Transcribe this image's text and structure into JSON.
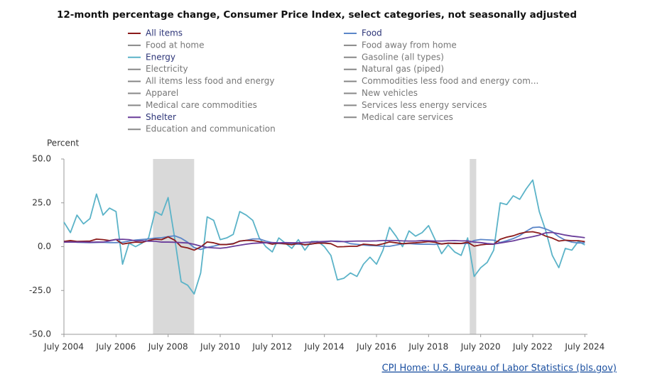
{
  "chart_data": {
    "type": "line",
    "title": "12-month percentage change, Consumer Price Index, select categories, not seasonally adjusted",
    "y_label": "Percent",
    "source_link": "CPI Home: U.S. Bureau of Labor Statistics (bls.gov)",
    "xlim": [
      2004.5,
      2024.6
    ],
    "xticks": [
      {
        "value": 2004.5,
        "label": "July 2004"
      },
      {
        "value": 2006.5,
        "label": "July 2006"
      },
      {
        "value": 2008.5,
        "label": "July 2008"
      },
      {
        "value": 2010.5,
        "label": "July 2010"
      },
      {
        "value": 2012.5,
        "label": "July 2012"
      },
      {
        "value": 2014.5,
        "label": "July 2014"
      },
      {
        "value": 2016.5,
        "label": "July 2016"
      },
      {
        "value": 2018.5,
        "label": "July 2018"
      },
      {
        "value": 2020.5,
        "label": "July 2020"
      },
      {
        "value": 2022.5,
        "label": "July 2022"
      },
      {
        "value": 2024.5,
        "label": "July 2024"
      }
    ],
    "ylim": [
      -50,
      50
    ],
    "yticks": [
      {
        "value": -50,
        "label": "-50.0"
      },
      {
        "value": -25,
        "label": "-25.0"
      },
      {
        "value": 0,
        "label": "0.0"
      },
      {
        "value": 25,
        "label": "25.0"
      },
      {
        "value": 50,
        "label": "50.0"
      }
    ],
    "recessions": [
      [
        2007.92,
        2009.5
      ],
      [
        2020.08,
        2020.33
      ]
    ],
    "x": [
      2004.5,
      2004.75,
      2005,
      2005.25,
      2005.5,
      2005.75,
      2006,
      2006.25,
      2006.5,
      2006.75,
      2007,
      2007.25,
      2007.5,
      2007.75,
      2008,
      2008.25,
      2008.5,
      2008.75,
      2009,
      2009.25,
      2009.5,
      2009.75,
      2010,
      2010.25,
      2010.5,
      2010.75,
      2011,
      2011.25,
      2011.5,
      2011.75,
      2012,
      2012.25,
      2012.5,
      2012.75,
      2013,
      2013.25,
      2013.5,
      2013.75,
      2014,
      2014.25,
      2014.5,
      2014.75,
      2015,
      2015.25,
      2015.5,
      2015.75,
      2016,
      2016.25,
      2016.5,
      2016.75,
      2017,
      2017.25,
      2017.5,
      2017.75,
      2018,
      2018.25,
      2018.5,
      2018.75,
      2019,
      2019.25,
      2019.5,
      2019.75,
      2020,
      2020.25,
      2020.5,
      2020.75,
      2021,
      2021.25,
      2021.5,
      2021.75,
      2022,
      2022.25,
      2022.5,
      2022.75,
      2023,
      2023.25,
      2023.5,
      2023.75,
      2024,
      2024.25,
      2024.5
    ],
    "series": [
      {
        "name": "All items",
        "color": "#8b1a1a",
        "values": [
          3,
          3.5,
          3,
          3.1,
          3.2,
          4.3,
          4,
          3.5,
          4.1,
          1.5,
          2.1,
          2.6,
          2.4,
          3.5,
          4.3,
          4,
          5.6,
          3.7,
          0,
          -0.7,
          -2,
          -0.2,
          2.7,
          2.2,
          1.2,
          1.2,
          1.6,
          3.2,
          3.6,
          3.5,
          2.9,
          2.3,
          1.4,
          2,
          1.6,
          1.1,
          2,
          1,
          1.6,
          2,
          2,
          1.7,
          -0.1,
          0,
          0.2,
          0.2,
          1.4,
          1.1,
          0.8,
          1.6,
          2.7,
          2.2,
          1.7,
          2,
          2.2,
          2.5,
          2.9,
          2.5,
          1.5,
          2,
          1.8,
          1.8,
          2.5,
          0.3,
          1,
          1.4,
          1.4,
          4.2,
          5.4,
          6.2,
          7.5,
          8.3,
          8.5,
          7.7,
          6,
          4.9,
          3.2,
          3.7,
          3.4,
          3.4,
          2.9
        ]
      },
      {
        "name": "Food",
        "color": "#5b86c8",
        "values": [
          3,
          3,
          2.5,
          2.4,
          2.3,
          2.4,
          2.5,
          2.3,
          2.3,
          2.5,
          3.2,
          3.8,
          4.1,
          4.4,
          4.9,
          5.1,
          5.7,
          6.2,
          4.8,
          2.5,
          -0.5,
          -1.6,
          -0.4,
          0.3,
          1.2,
          1.3,
          1.8,
          3.1,
          3.6,
          4.4,
          4.4,
          3.2,
          2.3,
          1.8,
          1.6,
          1.5,
          1.4,
          1.2,
          1.4,
          2.2,
          2.5,
          3.2,
          3.2,
          2.9,
          1.7,
          1.3,
          0.9,
          0.6,
          0.5,
          0.2,
          0.2,
          0.9,
          1.6,
          1.8,
          1.5,
          1.4,
          1.4,
          1.3,
          1.6,
          1.9,
          2,
          1.8,
          1.8,
          3.5,
          4.1,
          3.9,
          3.7,
          2.4,
          3.4,
          4.6,
          6.3,
          8.8,
          10.9,
          11.2,
          10.1,
          8.5,
          5.7,
          3.7,
          2.6,
          2.1,
          2.2
        ]
      },
      {
        "name": "Food at home",
        "color": "#888888",
        "visible": false
      },
      {
        "name": "Food away from home",
        "color": "#888888",
        "visible": false
      },
      {
        "name": "Energy",
        "color": "#5bb3c8",
        "values": [
          14,
          8,
          18,
          13,
          16,
          30,
          18,
          22,
          20,
          -10,
          2,
          0,
          2,
          5,
          20,
          18,
          28,
          5,
          -20,
          -22,
          -27,
          -15,
          17,
          15,
          4,
          5,
          7,
          20,
          18,
          15,
          5,
          0,
          -3,
          5,
          2,
          -1,
          4,
          -2,
          3,
          3,
          0,
          -5,
          -19,
          -18,
          -15,
          -17,
          -10,
          -6,
          -10,
          -2,
          11,
          6,
          0,
          9,
          6,
          8,
          12,
          4,
          -4,
          1,
          -3,
          -5,
          5,
          -17,
          -12,
          -9,
          -2,
          25,
          24,
          29,
          27,
          33,
          38,
          20,
          9,
          -5,
          -12,
          -1,
          -2,
          3,
          1
        ]
      },
      {
        "name": "Gasoline (all types)",
        "color": "#888888",
        "visible": false
      },
      {
        "name": "Electricity",
        "color": "#888888",
        "visible": false
      },
      {
        "name": "Natural gas (piped)",
        "color": "#888888",
        "visible": false
      },
      {
        "name": "All items less food and energy",
        "color": "#888888",
        "visible": false
      },
      {
        "name": "Commodities less food and energy com...",
        "color": "#888888",
        "visible": false
      },
      {
        "name": "Apparel",
        "color": "#888888",
        "visible": false
      },
      {
        "name": "New vehicles",
        "color": "#888888",
        "visible": false
      },
      {
        "name": "Medical care commodities",
        "color": "#888888",
        "visible": false
      },
      {
        "name": "Services less energy services",
        "color": "#888888",
        "visible": false
      },
      {
        "name": "Shelter",
        "color": "#6a3d9a",
        "values": [
          2.6,
          2.6,
          2.6,
          2.6,
          2.5,
          2.6,
          2.6,
          3.3,
          4.1,
          4.2,
          4,
          3.3,
          3.4,
          3.1,
          3.1,
          2.6,
          2.6,
          2.5,
          2.3,
          2.1,
          1.3,
          0.3,
          -0.4,
          -0.7,
          -0.9,
          -0.5,
          0.2,
          0.8,
          1.4,
          1.9,
          2.1,
          2.2,
          2.3,
          2.2,
          2.3,
          2.2,
          2.2,
          2.4,
          2.6,
          2.8,
          3,
          3.2,
          2.9,
          2.9,
          3.1,
          3.2,
          3.2,
          3.2,
          3.3,
          3.5,
          3.5,
          3.5,
          3.3,
          3.2,
          3.2,
          3.5,
          3.4,
          3.2,
          3.2,
          3.4,
          3.5,
          3.3,
          3.3,
          2.6,
          2.3,
          1.8,
          1.5,
          2.1,
          2.7,
          3.3,
          4.2,
          5,
          5.7,
          6.6,
          7.9,
          8.1,
          7.4,
          6.6,
          6,
          5.6,
          5.1
        ]
      },
      {
        "name": "Medical care services",
        "color": "#888888",
        "visible": false
      },
      {
        "name": "Education and communication",
        "color": "#888888",
        "visible": false
      }
    ]
  }
}
